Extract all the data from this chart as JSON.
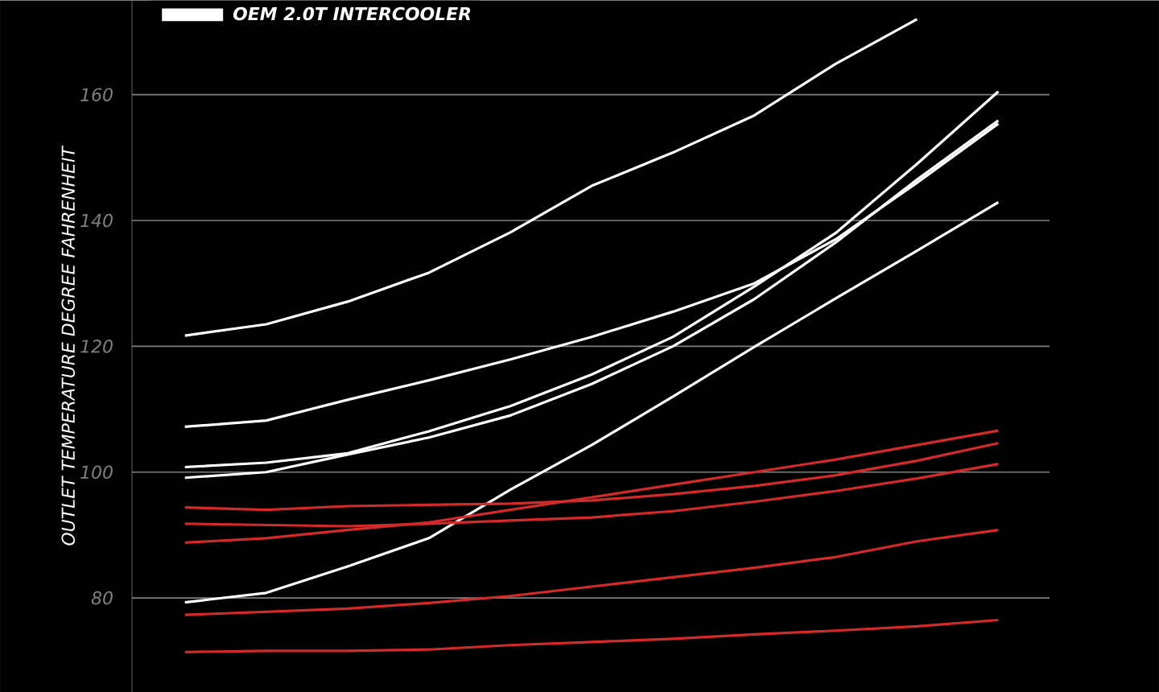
{
  "chart_data": {
    "type": "line",
    "ylabel": "OUTLET TEMPERATURE DEGREE FAHRENHEIT",
    "categories": [
      null,
      null,
      null,
      null,
      null,
      null,
      null,
      null,
      null,
      null,
      null
    ],
    "series": [
      {
        "name": "OEM 2.0T INTERCOOLER",
        "color": "#ffffff",
        "values": [
          121.7,
          123.5,
          127.1,
          131.7,
          138.1,
          145.5,
          150.8,
          156.7,
          164.9,
          172.0,
          null
        ]
      },
      {
        "color": "#ffffff",
        "values": [
          107.2,
          108.2,
          111.5,
          114.6,
          117.9,
          121.5,
          125.5,
          130.0,
          137.0,
          146.0,
          155.4
        ]
      },
      {
        "color": "#ffffff",
        "values": [
          100.8,
          101.5,
          103.0,
          106.5,
          110.5,
          115.5,
          121.5,
          129.5,
          138.0,
          149.0,
          160.5
        ]
      },
      {
        "color": "#ffffff",
        "values": [
          99.1,
          100.0,
          102.8,
          105.5,
          109.0,
          114.0,
          120.0,
          127.5,
          136.5,
          146.5,
          155.9
        ]
      },
      {
        "color": "#ffffff",
        "values": [
          79.3,
          80.8,
          85.0,
          89.5,
          97.2,
          104.3,
          112.0,
          119.9,
          127.6,
          135.2,
          142.9
        ]
      },
      {
        "color": "#d42a2a",
        "values": [
          94.4,
          94.0,
          94.6,
          94.8,
          95.0,
          95.5,
          96.5,
          97.8,
          99.5,
          101.8,
          104.6
        ]
      },
      {
        "color": "#d42a2a",
        "values": [
          91.8,
          91.6,
          91.4,
          91.8,
          92.3,
          92.8,
          93.8,
          95.3,
          97.0,
          99.0,
          101.3
        ]
      },
      {
        "color": "#d42a2a",
        "values": [
          88.8,
          89.5,
          90.8,
          92.0,
          94.0,
          96.0,
          98.0,
          100.0,
          102.0,
          104.3,
          106.6
        ]
      },
      {
        "color": "#d42a2a",
        "values": [
          77.3,
          77.8,
          78.3,
          79.2,
          80.3,
          81.8,
          83.3,
          84.8,
          86.5,
          89.0,
          90.8
        ]
      },
      {
        "color": "#d42a2a",
        "values": [
          71.4,
          71.6,
          71.6,
          71.8,
          72.5,
          73.0,
          73.5,
          74.2,
          74.8,
          75.5,
          76.5
        ]
      }
    ],
    "ylim": [
      65,
      175
    ],
    "yticks": [
      80,
      100,
      120,
      140,
      160
    ],
    "grid": "y",
    "legend": "top left",
    "marker": "none",
    "line_style": "solid",
    "tick_labels": "y"
  }
}
